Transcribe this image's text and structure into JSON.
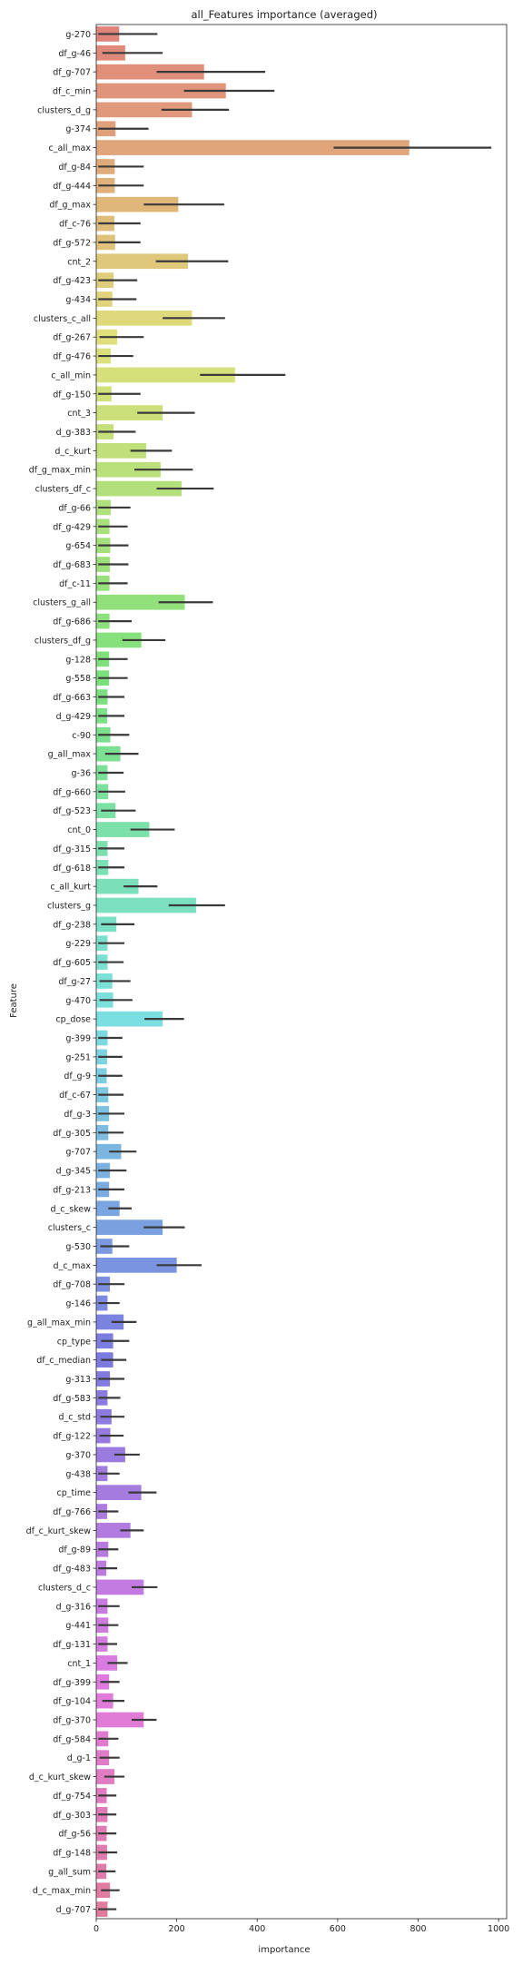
{
  "chart_data": {
    "type": "bar",
    "orientation": "horizontal",
    "title": "all_Features importance (averaged)",
    "xlabel": "importance",
    "ylabel": "Feature",
    "xlim": [
      0,
      1020
    ],
    "xticks": [
      0,
      200,
      400,
      600,
      800,
      1000
    ],
    "grid": false,
    "error_bars": true,
    "palette": "husl",
    "bars": [
      {
        "label": "g-270",
        "value": 57,
        "err_low": 5,
        "err_high": 152
      },
      {
        "label": "df_g-46",
        "value": 72,
        "err_low": 15,
        "err_high": 165
      },
      {
        "label": "df_g-707",
        "value": 268,
        "err_low": 150,
        "err_high": 420
      },
      {
        "label": "df_c_min",
        "value": 322,
        "err_low": 218,
        "err_high": 443
      },
      {
        "label": "clusters_d_g",
        "value": 238,
        "err_low": 162,
        "err_high": 330
      },
      {
        "label": "g-374",
        "value": 48,
        "err_low": 5,
        "err_high": 130
      },
      {
        "label": "c_all_max",
        "value": 778,
        "err_low": 590,
        "err_high": 982
      },
      {
        "label": "df_g-84",
        "value": 46,
        "err_low": 5,
        "err_high": 118
      },
      {
        "label": "df_g-444",
        "value": 46,
        "err_low": 5,
        "err_high": 118
      },
      {
        "label": "df_g_max",
        "value": 204,
        "err_low": 118,
        "err_high": 318
      },
      {
        "label": "df_c-76",
        "value": 45,
        "err_low": 5,
        "err_high": 110
      },
      {
        "label": "df_g-572",
        "value": 47,
        "err_low": 5,
        "err_high": 110
      },
      {
        "label": "cnt_2",
        "value": 228,
        "err_low": 148,
        "err_high": 328
      },
      {
        "label": "df_g-423",
        "value": 43,
        "err_low": 5,
        "err_high": 102
      },
      {
        "label": "g-434",
        "value": 40,
        "err_low": 5,
        "err_high": 100
      },
      {
        "label": "clusters_c_all",
        "value": 238,
        "err_low": 165,
        "err_high": 320
      },
      {
        "label": "df_g-267",
        "value": 52,
        "err_low": 8,
        "err_high": 118
      },
      {
        "label": "df_g-476",
        "value": 36,
        "err_low": 5,
        "err_high": 92
      },
      {
        "label": "c_all_min",
        "value": 345,
        "err_low": 258,
        "err_high": 470
      },
      {
        "label": "df_g-150",
        "value": 38,
        "err_low": 5,
        "err_high": 110
      },
      {
        "label": "cnt_3",
        "value": 165,
        "err_low": 102,
        "err_high": 245
      },
      {
        "label": "d_g-383",
        "value": 43,
        "err_low": 5,
        "err_high": 98
      },
      {
        "label": "d_c_kurt",
        "value": 124,
        "err_low": 85,
        "err_high": 188
      },
      {
        "label": "df_g_max_min",
        "value": 160,
        "err_low": 95,
        "err_high": 240
      },
      {
        "label": "clusters_df_c",
        "value": 212,
        "err_low": 150,
        "err_high": 292
      },
      {
        "label": "df_g-66",
        "value": 36,
        "err_low": 5,
        "err_high": 85
      },
      {
        "label": "df_g-429",
        "value": 33,
        "err_low": 5,
        "err_high": 78
      },
      {
        "label": "g-654",
        "value": 35,
        "err_low": 5,
        "err_high": 80
      },
      {
        "label": "df_g-683",
        "value": 34,
        "err_low": 5,
        "err_high": 80
      },
      {
        "label": "df_c-11",
        "value": 33,
        "err_low": 5,
        "err_high": 78
      },
      {
        "label": "clusters_g_all",
        "value": 220,
        "err_low": 155,
        "err_high": 290
      },
      {
        "label": "df_g-686",
        "value": 33,
        "err_low": 5,
        "err_high": 88
      },
      {
        "label": "clusters_df_g",
        "value": 112,
        "err_low": 65,
        "err_high": 172
      },
      {
        "label": "g-128",
        "value": 32,
        "err_low": 5,
        "err_high": 78
      },
      {
        "label": "g-558",
        "value": 32,
        "err_low": 5,
        "err_high": 78
      },
      {
        "label": "df_g-663",
        "value": 28,
        "err_low": 5,
        "err_high": 70
      },
      {
        "label": "d_g-429",
        "value": 27,
        "err_low": 5,
        "err_high": 70
      },
      {
        "label": "c-90",
        "value": 35,
        "err_low": 5,
        "err_high": 82
      },
      {
        "label": "g_all_max",
        "value": 60,
        "err_low": 22,
        "err_high": 105
      },
      {
        "label": "g-36",
        "value": 28,
        "err_low": 5,
        "err_high": 68
      },
      {
        "label": "df_g-660",
        "value": 30,
        "err_low": 5,
        "err_high": 72
      },
      {
        "label": "df_g-523",
        "value": 48,
        "err_low": 12,
        "err_high": 98
      },
      {
        "label": "cnt_0",
        "value": 132,
        "err_low": 85,
        "err_high": 195
      },
      {
        "label": "df_g-315",
        "value": 28,
        "err_low": 5,
        "err_high": 70
      },
      {
        "label": "df_g-618",
        "value": 30,
        "err_low": 5,
        "err_high": 70
      },
      {
        "label": "c_all_kurt",
        "value": 105,
        "err_low": 68,
        "err_high": 152
      },
      {
        "label": "clusters_g",
        "value": 248,
        "err_low": 180,
        "err_high": 320
      },
      {
        "label": "df_g-238",
        "value": 50,
        "err_low": 12,
        "err_high": 95
      },
      {
        "label": "g-229",
        "value": 28,
        "err_low": 5,
        "err_high": 70
      },
      {
        "label": "df_g-605",
        "value": 28,
        "err_low": 5,
        "err_high": 68
      },
      {
        "label": "df_g-27",
        "value": 40,
        "err_low": 8,
        "err_high": 85
      },
      {
        "label": "g-470",
        "value": 42,
        "err_low": 8,
        "err_high": 90
      },
      {
        "label": "cp_dose",
        "value": 165,
        "err_low": 120,
        "err_high": 218
      },
      {
        "label": "g-399",
        "value": 28,
        "err_low": 5,
        "err_high": 65
      },
      {
        "label": "g-251",
        "value": 27,
        "err_low": 5,
        "err_high": 65
      },
      {
        "label": "df_g-9",
        "value": 26,
        "err_low": 5,
        "err_high": 65
      },
      {
        "label": "df_c-67",
        "value": 30,
        "err_low": 5,
        "err_high": 68
      },
      {
        "label": "df_g-3",
        "value": 32,
        "err_low": 5,
        "err_high": 70
      },
      {
        "label": "df_g-305",
        "value": 30,
        "err_low": 5,
        "err_high": 68
      },
      {
        "label": "g-707",
        "value": 62,
        "err_low": 32,
        "err_high": 100
      },
      {
        "label": "d_g-345",
        "value": 34,
        "err_low": 5,
        "err_high": 75
      },
      {
        "label": "df_g-213",
        "value": 32,
        "err_low": 5,
        "err_high": 70
      },
      {
        "label": "d_c_skew",
        "value": 58,
        "err_low": 30,
        "err_high": 88
      },
      {
        "label": "clusters_c",
        "value": 165,
        "err_low": 118,
        "err_high": 220
      },
      {
        "label": "g-530",
        "value": 40,
        "err_low": 10,
        "err_high": 82
      },
      {
        "label": "d_c_max",
        "value": 200,
        "err_low": 150,
        "err_high": 262
      },
      {
        "label": "df_g-708",
        "value": 34,
        "err_low": 5,
        "err_high": 70
      },
      {
        "label": "g-146",
        "value": 28,
        "err_low": 5,
        "err_high": 58
      },
      {
        "label": "g_all_max_min",
        "value": 68,
        "err_low": 38,
        "err_high": 100
      },
      {
        "label": "cp_type",
        "value": 42,
        "err_low": 12,
        "err_high": 82
      },
      {
        "label": "df_c_median",
        "value": 42,
        "err_low": 12,
        "err_high": 75
      },
      {
        "label": "g-313",
        "value": 34,
        "err_low": 5,
        "err_high": 70
      },
      {
        "label": "df_g-583",
        "value": 28,
        "err_low": 5,
        "err_high": 60
      },
      {
        "label": "d_c_std",
        "value": 38,
        "err_low": 10,
        "err_high": 70
      },
      {
        "label": "df_g-122",
        "value": 35,
        "err_low": 8,
        "err_high": 68
      },
      {
        "label": "g-370",
        "value": 72,
        "err_low": 45,
        "err_high": 108
      },
      {
        "label": "g-438",
        "value": 28,
        "err_low": 5,
        "err_high": 58
      },
      {
        "label": "cp_time",
        "value": 112,
        "err_low": 80,
        "err_high": 150
      },
      {
        "label": "df_g-766",
        "value": 27,
        "err_low": 5,
        "err_high": 55
      },
      {
        "label": "df_c_kurt_skew",
        "value": 85,
        "err_low": 60,
        "err_high": 118
      },
      {
        "label": "df_g-89",
        "value": 30,
        "err_low": 5,
        "err_high": 55
      },
      {
        "label": "df_g-483",
        "value": 25,
        "err_low": 5,
        "err_high": 52
      },
      {
        "label": "clusters_d_c",
        "value": 118,
        "err_low": 88,
        "err_high": 152
      },
      {
        "label": "d_g-316",
        "value": 28,
        "err_low": 5,
        "err_high": 58
      },
      {
        "label": "g-441",
        "value": 30,
        "err_low": 5,
        "err_high": 55
      },
      {
        "label": "df_g-131",
        "value": 28,
        "err_low": 5,
        "err_high": 52
      },
      {
        "label": "cnt_1",
        "value": 52,
        "err_low": 28,
        "err_high": 78
      },
      {
        "label": "df_g-399",
        "value": 32,
        "err_low": 10,
        "err_high": 58
      },
      {
        "label": "df_g-104",
        "value": 42,
        "err_low": 15,
        "err_high": 70
      },
      {
        "label": "df_g-370",
        "value": 118,
        "err_low": 88,
        "err_high": 150
      },
      {
        "label": "df_g-584",
        "value": 30,
        "err_low": 5,
        "err_high": 55
      },
      {
        "label": "d_g-1",
        "value": 32,
        "err_low": 8,
        "err_high": 58
      },
      {
        "label": "d_c_kurt_skew",
        "value": 45,
        "err_low": 20,
        "err_high": 70
      },
      {
        "label": "df_g-754",
        "value": 26,
        "err_low": 5,
        "err_high": 50
      },
      {
        "label": "df_g-303",
        "value": 28,
        "err_low": 5,
        "err_high": 50
      },
      {
        "label": "df_g-56",
        "value": 26,
        "err_low": 5,
        "err_high": 50
      },
      {
        "label": "df_g-148",
        "value": 27,
        "err_low": 5,
        "err_high": 52
      },
      {
        "label": "g_all_sum",
        "value": 25,
        "err_low": 5,
        "err_high": 48
      },
      {
        "label": "d_c_max_min",
        "value": 34,
        "err_low": 12,
        "err_high": 58
      },
      {
        "label": "d_g-707",
        "value": 28,
        "err_low": 5,
        "err_high": 50
      }
    ]
  }
}
